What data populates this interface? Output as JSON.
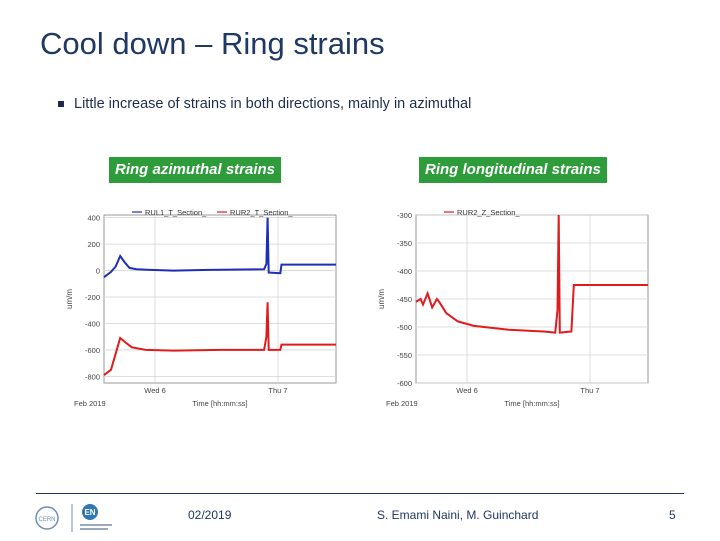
{
  "slide": {
    "title": "Cool down – Ring strains",
    "bullet": "Little increase of strains in both directions, mainly in azimuthal"
  },
  "footer": {
    "date": "02/2019",
    "authors": "S. Emami Naini, M. Guinchard",
    "page": "5",
    "logo_text_1": "CERN",
    "logo_text_2": "EN"
  },
  "colors": {
    "red": "#e01b1b",
    "blue": "#1d2fb5",
    "header_green": "#2e9c3a",
    "title_blue": "#1f3864"
  },
  "chart_data": [
    {
      "type": "line",
      "title": "Ring azimuthal strains",
      "ylabel": "um/m",
      "xlabel": "Time [hh:mm:ss]",
      "x_date_label": "Feb 2019",
      "x_ticks": [
        {
          "label": "Wed 6",
          "t": 0.22
        },
        {
          "label": "Thu 7",
          "t": 0.75
        }
      ],
      "ylim": [
        -850,
        420
      ],
      "y_ticks": [
        400,
        200,
        0,
        -200,
        -400,
        -600,
        -800
      ],
      "legend": [
        "RUL1_T_Section_",
        "RUR2_T_Section_"
      ],
      "series": [
        {
          "name": "RUL1_T_Section_",
          "color": "#1d2fb5",
          "points": [
            [
              0,
              -50
            ],
            [
              0.03,
              -10
            ],
            [
              0.05,
              30
            ],
            [
              0.07,
              110
            ],
            [
              0.09,
              60
            ],
            [
              0.11,
              20
            ],
            [
              0.14,
              10
            ],
            [
              0.2,
              5
            ],
            [
              0.3,
              0
            ],
            [
              0.45,
              5
            ],
            [
              0.6,
              8
            ],
            [
              0.69,
              10
            ],
            [
              0.7,
              50
            ],
            [
              0.705,
              400
            ],
            [
              0.71,
              -15
            ],
            [
              0.76,
              -20
            ],
            [
              0.765,
              45
            ],
            [
              1.0,
              45
            ]
          ]
        },
        {
          "name": "RUR2_T_Section_",
          "color": "#e01b1b",
          "points": [
            [
              0,
              -790
            ],
            [
              0.03,
              -750
            ],
            [
              0.05,
              -630
            ],
            [
              0.07,
              -510
            ],
            [
              0.09,
              -540
            ],
            [
              0.12,
              -580
            ],
            [
              0.18,
              -600
            ],
            [
              0.3,
              -605
            ],
            [
              0.5,
              -600
            ],
            [
              0.69,
              -600
            ],
            [
              0.7,
              -500
            ],
            [
              0.705,
              -240
            ],
            [
              0.71,
              -600
            ],
            [
              0.76,
              -600
            ],
            [
              0.765,
              -560
            ],
            [
              1.0,
              -560
            ]
          ]
        }
      ]
    },
    {
      "type": "line",
      "title": "Ring longitudinal strains",
      "ylabel": "um/m",
      "xlabel": "Time [hh:mm:ss]",
      "x_date_label": "Feb 2019",
      "x_ticks": [
        {
          "label": "Wed 6",
          "t": 0.22
        },
        {
          "label": "Thu 7",
          "t": 0.75
        }
      ],
      "ylim": [
        -600,
        -300
      ],
      "y_ticks": [
        -300,
        -350,
        -400,
        -450,
        -500,
        -550,
        -600
      ],
      "legend": [
        "RUR2_Z_Section_"
      ],
      "series": [
        {
          "name": "RUR2_Z_Section_",
          "color": "#e01b1b",
          "points": [
            [
              0,
              -455
            ],
            [
              0.02,
              -450
            ],
            [
              0.03,
              -460
            ],
            [
              0.05,
              -440
            ],
            [
              0.07,
              -465
            ],
            [
              0.09,
              -450
            ],
            [
              0.1,
              -455
            ],
            [
              0.13,
              -475
            ],
            [
              0.18,
              -490
            ],
            [
              0.25,
              -498
            ],
            [
              0.4,
              -505
            ],
            [
              0.55,
              -508
            ],
            [
              0.6,
              -510
            ],
            [
              0.61,
              -470
            ],
            [
              0.615,
              -300
            ],
            [
              0.62,
              -510
            ],
            [
              0.67,
              -508
            ],
            [
              0.68,
              -425
            ],
            [
              1.0,
              -425
            ]
          ]
        }
      ]
    }
  ]
}
